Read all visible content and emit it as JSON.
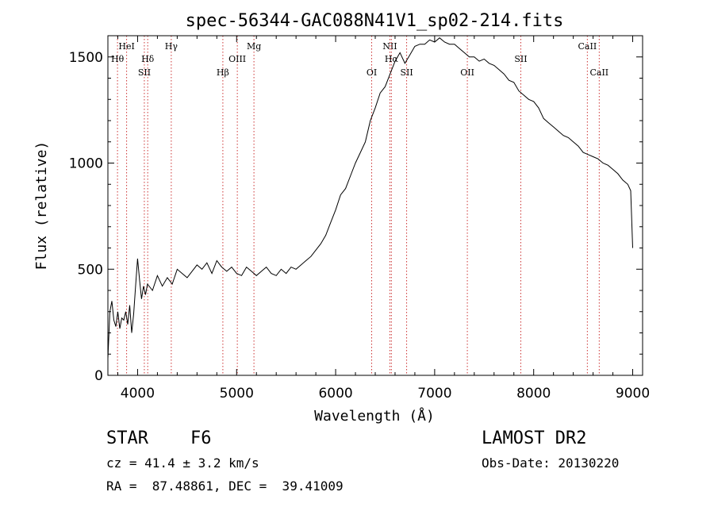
{
  "chart_data": {
    "type": "line",
    "title": "spec-56344-GAC088N41V1_sp02-214.fits",
    "xlabel": "Wavelength (Å)",
    "ylabel": "Flux (relative)",
    "xlim": [
      3700,
      9100
    ],
    "ylim": [
      0,
      1600
    ],
    "xticks": [
      4000,
      5000,
      6000,
      7000,
      8000,
      9000
    ],
    "yticks": [
      0,
      500,
      1000,
      1500
    ],
    "grid": false,
    "series": [
      {
        "x": [
          3700,
          3720,
          3740,
          3760,
          3780,
          3800,
          3820,
          3840,
          3860,
          3880,
          3900,
          3920,
          3940,
          3960,
          3980,
          4000,
          4020,
          4040,
          4060,
          4080,
          4100,
          4150,
          4200,
          4250,
          4300,
          4350,
          4400,
          4450,
          4500,
          4550,
          4600,
          4650,
          4700,
          4750,
          4800,
          4850,
          4900,
          4950,
          5000,
          5050,
          5100,
          5150,
          5200,
          5250,
          5300,
          5350,
          5400,
          5450,
          5500,
          5550,
          5600,
          5650,
          5700,
          5750,
          5800,
          5850,
          5900,
          5950,
          6000,
          6050,
          6100,
          6150,
          6200,
          6250,
          6300,
          6350,
          6400,
          6450,
          6500,
          6550,
          6600,
          6650,
          6700,
          6750,
          6800,
          6850,
          6900,
          6950,
          7000,
          7050,
          7100,
          7150,
          7200,
          7250,
          7300,
          7350,
          7400,
          7450,
          7500,
          7550,
          7600,
          7650,
          7700,
          7750,
          7800,
          7850,
          7900,
          7950,
          8000,
          8050,
          8100,
          8150,
          8200,
          8250,
          8300,
          8350,
          8400,
          8450,
          8500,
          8550,
          8600,
          8650,
          8700,
          8750,
          8800,
          8850,
          8900,
          8950,
          8980,
          9000
        ],
        "values": [
          80,
          300,
          350,
          260,
          230,
          300,
          220,
          270,
          260,
          300,
          240,
          330,
          200,
          290,
          420,
          550,
          450,
          360,
          420,
          380,
          430,
          400,
          470,
          420,
          460,
          430,
          500,
          480,
          460,
          490,
          520,
          500,
          530,
          480,
          540,
          510,
          490,
          510,
          480,
          470,
          510,
          490,
          470,
          490,
          510,
          480,
          470,
          500,
          480,
          510,
          500,
          520,
          540,
          560,
          590,
          620,
          660,
          720,
          780,
          850,
          880,
          940,
          1000,
          1050,
          1100,
          1200,
          1260,
          1330,
          1360,
          1420,
          1480,
          1520,
          1470,
          1510,
          1550,
          1560,
          1560,
          1580,
          1570,
          1590,
          1570,
          1560,
          1560,
          1540,
          1520,
          1500,
          1500,
          1480,
          1490,
          1470,
          1460,
          1440,
          1420,
          1390,
          1380,
          1340,
          1320,
          1300,
          1290,
          1260,
          1210,
          1190,
          1170,
          1150,
          1130,
          1120,
          1100,
          1080,
          1050,
          1040,
          1030,
          1020,
          1000,
          990,
          970,
          950,
          920,
          900,
          870,
          600
        ]
      }
    ],
    "lines": [
      {
        "name": "Hθ",
        "x": 3797,
        "row": 2
      },
      {
        "name": "HeI",
        "x": 3889,
        "row": 1
      },
      {
        "name": "SII",
        "x": 4068,
        "row": 3
      },
      {
        "name": "Hδ",
        "x": 4102,
        "row": 2
      },
      {
        "name": "Hγ",
        "x": 4340,
        "row": 1
      },
      {
        "name": "Hβ",
        "x": 4861,
        "row": 3
      },
      {
        "name": "OIII",
        "x": 5007,
        "row": 2
      },
      {
        "name": "Mg",
        "x": 5175,
        "row": 1
      },
      {
        "name": "OI",
        "x": 6364,
        "row": 3
      },
      {
        "name": "NII",
        "x": 6548,
        "row": 1
      },
      {
        "name": "Hα",
        "x": 6563,
        "row": 2
      },
      {
        "name": "SII",
        "x": 6717,
        "row": 3
      },
      {
        "name": "OII",
        "x": 7330,
        "row": 3
      },
      {
        "name": "SII",
        "x": 7870,
        "row": 2
      },
      {
        "name": "CaII",
        "x": 8542,
        "row": 1
      },
      {
        "name": "CaII",
        "x": 8662,
        "row": 3
      }
    ]
  },
  "info": {
    "class": "STAR",
    "subclass": "F6",
    "survey": "LAMOST DR2",
    "cz": "cz = 41.4 ± 3.2 km/s",
    "obsdate": "Obs-Date: 20130220",
    "radec": "RA =  87.48861, DEC =  39.41009"
  },
  "colors": {
    "line_marker": "#cc3333",
    "spectrum": "#000000"
  }
}
